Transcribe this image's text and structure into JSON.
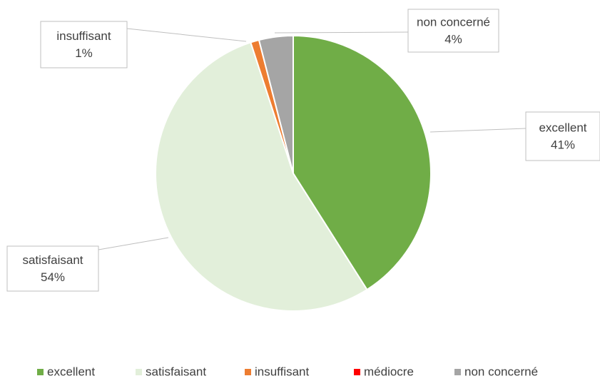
{
  "chart_data": {
    "type": "pie",
    "categories": [
      "excellent",
      "satisfaisant",
      "insuffisant",
      "médiocre",
      "non concerné"
    ],
    "values": [
      41,
      54,
      1,
      0,
      4
    ],
    "value_labels": [
      "41%",
      "54%",
      "1%",
      null,
      "4%"
    ],
    "colors": [
      "#70ad47",
      "#e2efda",
      "#ed7d31",
      "#ff0000",
      "#a5a5a5"
    ],
    "legend": "bottom"
  }
}
